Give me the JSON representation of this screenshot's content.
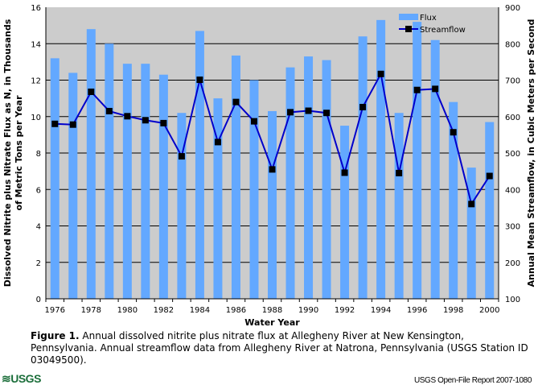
{
  "chart_data": {
    "type": "bar+line",
    "categories": [
      1976,
      1977,
      1978,
      1979,
      1980,
      1981,
      1982,
      1983,
      1984,
      1985,
      1986,
      1987,
      1988,
      1989,
      1990,
      1991,
      1992,
      1993,
      1994,
      1995,
      1996,
      1997,
      1998,
      1999,
      2000
    ],
    "x_tick_labels": [
      "1976",
      "1978",
      "1980",
      "1982",
      "1984",
      "1986",
      "1988",
      "1990",
      "1992",
      "1994",
      "1996",
      "1998",
      "2000"
    ],
    "series": [
      {
        "name": "Flux",
        "type": "bar",
        "axis": "left",
        "color": "#63a8ff",
        "values": [
          13.2,
          12.4,
          14.8,
          14.0,
          12.9,
          12.9,
          12.3,
          10.2,
          14.7,
          11.0,
          13.35,
          12.0,
          10.3,
          12.7,
          13.3,
          13.1,
          9.5,
          14.4,
          15.3,
          10.2,
          15.2,
          14.2,
          10.8,
          7.2,
          9.7
        ]
      },
      {
        "name": "Streamflow",
        "type": "line",
        "axis": "right",
        "color": "#0000cc",
        "marker": "square",
        "values": [
          580,
          578,
          668,
          615,
          601,
          590,
          582,
          491,
          701,
          530,
          640,
          587,
          455,
          612,
          616,
          610,
          446,
          626,
          717,
          445,
          673,
          676,
          557,
          360,
          437
        ]
      }
    ],
    "xlabel": "Water Year",
    "ylabel": "Dissolved Nitrite plus Nitrate Flux as N, in Thousands",
    "ylabel2": "of Metric Tons per Year",
    "y2label": "Annual Mean Streamflow, in Cubic Meters per Second",
    "ylim": [
      0,
      16
    ],
    "yticks": [
      "0",
      "2",
      "4",
      "6",
      "8",
      "10",
      "12",
      "14",
      "16"
    ],
    "y2lim": [
      100,
      900
    ],
    "y2ticks": [
      "100",
      "200",
      "300",
      "400",
      "500",
      "600",
      "700",
      "800",
      "900"
    ],
    "grid": true,
    "legend": "top-right",
    "background": "#cccccc"
  },
  "caption": {
    "label": "Figure 1.",
    "text": " Annual dissolved nitrite plus nitrate flux at Allegheny River at New Kensington, Pennsylvania. Annual streamflow data from Allegheny River at Natrona, Pennsylvania (USGS Station ID 03049500)."
  },
  "footer": {
    "logo": "≋USGS",
    "report": "USGS Open-File Report 2007-1080"
  }
}
